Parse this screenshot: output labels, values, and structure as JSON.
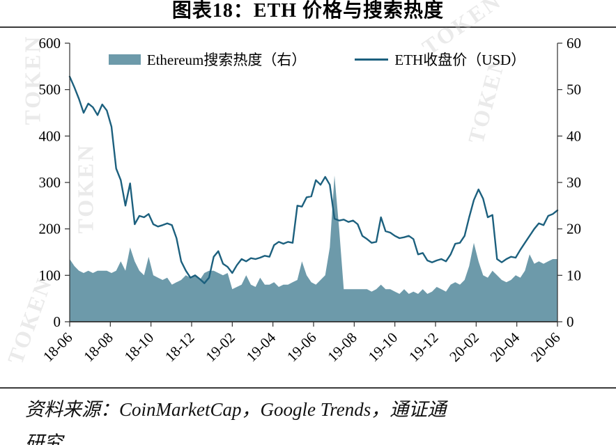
{
  "title": "图表18：ETH 价格与搜索热度",
  "watermark": "TOKEN",
  "legend": {
    "area_label": "Ethereum搜索热度（右）",
    "line_label": "ETH收盘价（USD）"
  },
  "source": {
    "line1": "资料来源：CoinMarketCap，Google Trends，通证通",
    "line2": "研究"
  },
  "chart_data": {
    "type": "line",
    "title": "图表18：ETH 价格与搜索热度",
    "x_ticks": [
      "18-06",
      "18-08",
      "18-10",
      "18-12",
      "19-02",
      "19-04",
      "19-06",
      "19-08",
      "19-10",
      "19-12",
      "20-02",
      "20-04",
      "20-06"
    ],
    "left_axis": {
      "label": "ETH收盘价（USD）",
      "min": 0,
      "max": 600,
      "step": 100
    },
    "right_axis": {
      "label": "Ethereum搜索热度（右）",
      "min": 0,
      "max": 60,
      "step": 10
    },
    "grid": false,
    "legend_position": "top",
    "series": [
      {
        "name": "Ethereum搜索热度（右）",
        "type": "area",
        "axis": "right",
        "color": "#6d9aaa",
        "values": [
          13.5,
          12,
          11,
          10.5,
          11,
          10.5,
          11,
          11,
          11,
          10.5,
          11,
          13,
          11,
          16,
          13,
          11,
          10,
          14,
          10,
          9.5,
          9,
          9.5,
          8,
          8.5,
          9,
          10,
          9.5,
          10,
          9,
          10.5,
          11,
          11,
          10.5,
          10,
          10.5,
          7,
          7.5,
          8,
          10,
          8,
          7.5,
          9.5,
          8,
          8,
          8.5,
          7.5,
          8,
          8,
          8.5,
          9,
          13,
          10,
          8.5,
          8,
          9,
          10,
          16,
          31.5,
          20,
          7,
          7,
          7,
          7,
          7,
          7,
          6.5,
          7,
          8,
          7,
          7,
          6.5,
          6,
          7,
          6,
          6.5,
          6,
          7,
          6,
          6.5,
          7.5,
          7,
          6.5,
          8,
          8.5,
          8,
          9,
          12,
          17,
          13,
          10,
          9.5,
          11,
          10,
          9,
          8.5,
          9,
          10,
          9.5,
          11,
          14.5,
          12.5,
          13,
          12.5,
          13,
          13.5,
          13.5
        ]
      },
      {
        "name": "ETH收盘价（USD）",
        "type": "line",
        "axis": "left",
        "color": "#1c607e",
        "values": [
          528,
          505,
          480,
          450,
          470,
          462,
          445,
          468,
          455,
          420,
          330,
          305,
          250,
          298,
          210,
          228,
          225,
          232,
          210,
          205,
          208,
          212,
          208,
          180,
          130,
          110,
          95,
          100,
          92,
          83,
          95,
          140,
          152,
          125,
          118,
          105,
          122,
          135,
          130,
          137,
          135,
          138,
          142,
          140,
          165,
          172,
          168,
          172,
          170,
          250,
          248,
          268,
          270,
          305,
          295,
          312,
          295,
          222,
          218,
          220,
          215,
          218,
          210,
          185,
          178,
          170,
          172,
          225,
          195,
          192,
          185,
          180,
          182,
          185,
          178,
          145,
          148,
          132,
          128,
          132,
          135,
          130,
          145,
          168,
          170,
          185,
          225,
          262,
          285,
          265,
          225,
          230,
          135,
          128,
          135,
          140,
          138,
          155,
          170,
          185,
          200,
          212,
          208,
          228,
          232,
          240
        ]
      }
    ]
  }
}
